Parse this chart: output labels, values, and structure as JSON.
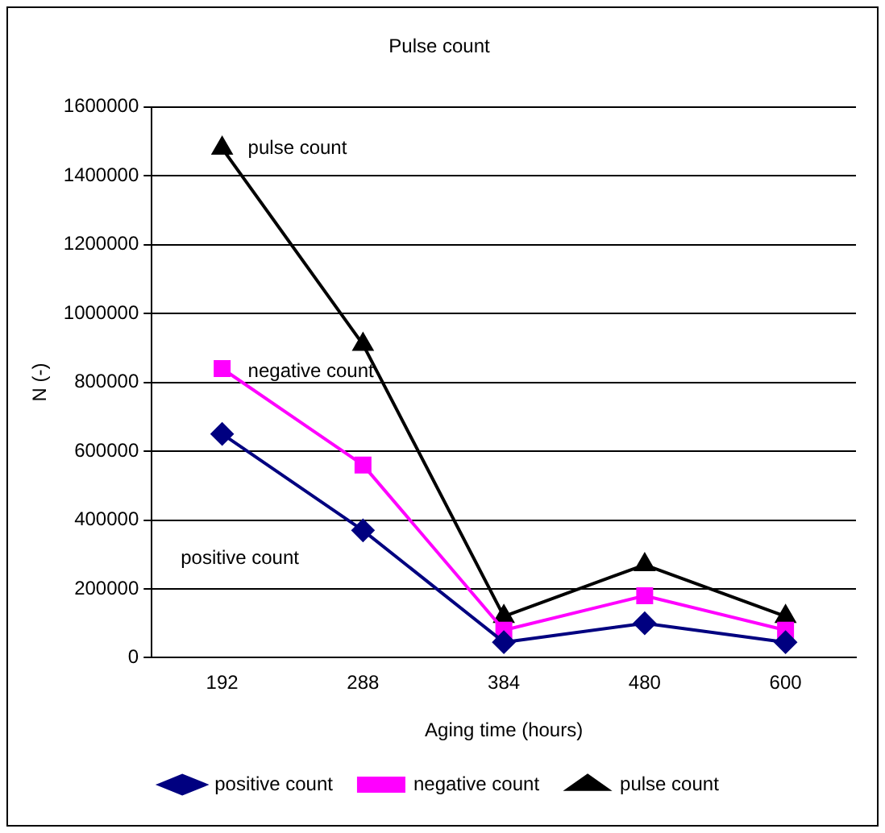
{
  "chart_data": {
    "type": "line",
    "title": "Pulse count",
    "xlabel": "Aging time (hours)",
    "ylabel": "N (-)",
    "categories": [
      "192",
      "288",
      "384",
      "480",
      "600"
    ],
    "series": [
      {
        "name": "positive count",
        "color": "#000080",
        "marker": "diamond",
        "values": [
          650000,
          370000,
          45000,
          100000,
          45000
        ]
      },
      {
        "name": "negative count",
        "color": "#ff00ff",
        "marker": "square",
        "values": [
          840000,
          560000,
          80000,
          180000,
          80000
        ]
      },
      {
        "name": "pulse count",
        "color": "#000000",
        "marker": "triangle",
        "values": [
          1480000,
          910000,
          120000,
          270000,
          120000
        ]
      }
    ],
    "ylim": [
      0,
      1600000
    ],
    "yticks": [
      0,
      200000,
      400000,
      600000,
      800000,
      1000000,
      1200000,
      1400000,
      1600000
    ],
    "grid": "y",
    "legend": "bottom",
    "annotations": [
      {
        "text": "pulse count",
        "x": "192",
        "y": 1480000
      },
      {
        "text": "negative count",
        "x": "192",
        "y": 830000
      },
      "positive count"
    ]
  }
}
